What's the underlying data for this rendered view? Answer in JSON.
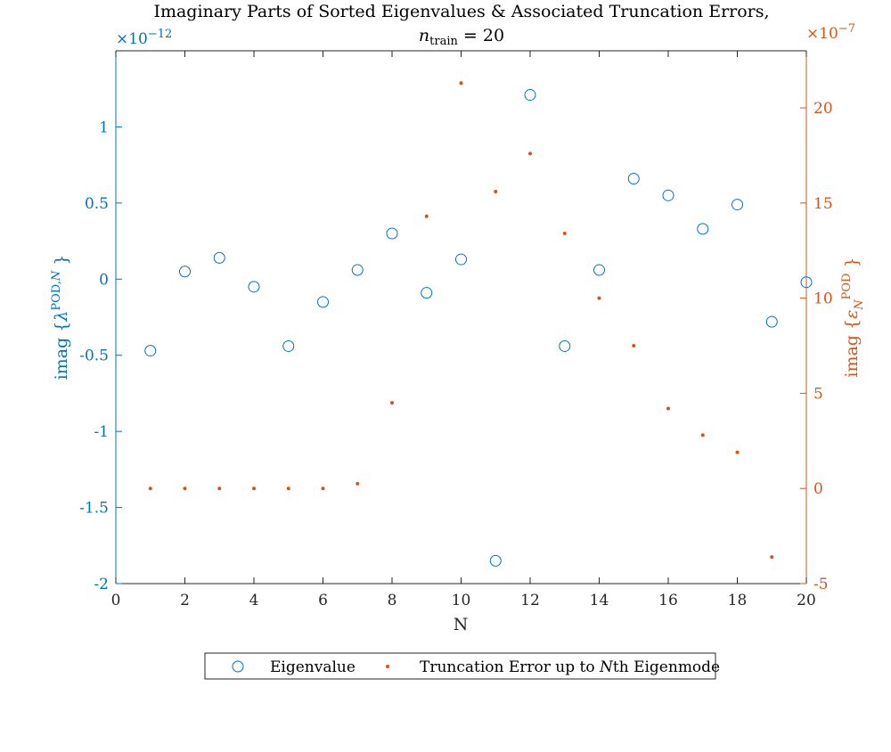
{
  "chart_data": {
    "type": "scatter",
    "title": "Imaginary Parts of Sorted Eigenvalues & Associated Truncation Errors,",
    "subtitle_var": "n",
    "subtitle_sub": "train",
    "subtitle_rest": " = 20",
    "xlabel": "N",
    "ylabel_left": "imag {λ^(POD,N)}",
    "ylabel_right": "imag {ε_N^POD}",
    "left_multiplier": "×10",
    "left_exponent": "−12",
    "right_multiplier": "×10",
    "right_exponent": "−7",
    "xlim": [
      0,
      20
    ],
    "ylim_left": [
      -2,
      1.5
    ],
    "ylim_right": [
      -5,
      23
    ],
    "x_ticks": [
      "0",
      "2",
      "4",
      "6",
      "8",
      "10",
      "12",
      "14",
      "16",
      "18",
      "20"
    ],
    "y_left_ticks": [
      "-2",
      "-1.5",
      "-1",
      "-0.5",
      "0",
      "0.5",
      "1"
    ],
    "y_right_ticks": [
      "-5",
      "0",
      "5",
      "10",
      "15",
      "20"
    ],
    "x": [
      1,
      2,
      3,
      4,
      5,
      6,
      7,
      8,
      9,
      10,
      11,
      12,
      13,
      14,
      15,
      16,
      17,
      18,
      19,
      20
    ],
    "series": [
      {
        "name": "Eigenvalue",
        "axis": "left",
        "marker": "circle",
        "color": "#0072bd",
        "values": [
          -0.47,
          0.05,
          0.14,
          -0.05,
          -0.44,
          -0.15,
          0.06,
          0.3,
          -0.09,
          0.13,
          -1.85,
          1.21,
          -0.44,
          0.06,
          0.66,
          0.55,
          0.33,
          0.49,
          -0.28,
          -0.02
        ]
      },
      {
        "name": "Truncation Error up to Nth Eigenmode",
        "axis": "right",
        "marker": "dot",
        "color": "#d95319",
        "values": [
          0,
          0,
          0,
          0,
          0,
          0,
          0.25,
          4.5,
          14.3,
          21.3,
          15.6,
          17.6,
          13.4,
          10.0,
          7.5,
          4.2,
          2.8,
          1.9,
          -3.6,
          null
        ]
      }
    ],
    "legend_position": "bottom-outside",
    "legend_labels": {
      "eigen": "Eigenvalue",
      "trunc_pre": "Truncation Error up to ",
      "trunc_var": "N",
      "trunc_post": "th Eigenmode"
    }
  }
}
